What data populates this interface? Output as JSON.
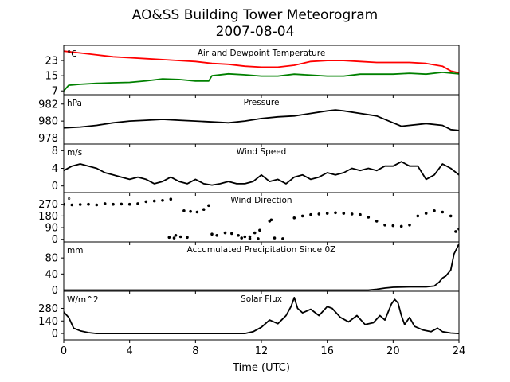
{
  "chart_data": {
    "type": "line",
    "title": "AO&SS Building Tower Meteorogram",
    "subtitle": "2007-08-04",
    "xlabel": "Time (UTC)",
    "xlim": [
      0,
      24
    ],
    "xticks": [
      0,
      4,
      8,
      12,
      16,
      20,
      24
    ],
    "panels": [
      {
        "title": "Air and Dewpoint Temperature",
        "unit": "°C",
        "ylim": [
          5,
          31
        ],
        "yticks": [
          7,
          15,
          23
        ],
        "series": [
          {
            "color": "#ff0000",
            "style": "line",
            "x": [
              0,
              1,
              2,
              3,
              4,
              5,
              6,
              7,
              8,
              9,
              10,
              11,
              12,
              13,
              14,
              15,
              16,
              17,
              18,
              19,
              20,
              21,
              22,
              23,
              23.5,
              24
            ],
            "y": [
              28,
              27,
              26,
              25,
              24.5,
              24,
              23.5,
              23,
              22.5,
              21.5,
              21,
              20,
              19.5,
              19.5,
              20.5,
              22.5,
              23,
              23,
              22.5,
              22,
              22,
              22,
              21.5,
              20,
              17.5,
              16.5
            ]
          },
          {
            "color": "#008000",
            "style": "line",
            "x": [
              0,
              0.3,
              1,
              2,
              3,
              4,
              5,
              6,
              7,
              8,
              8.8,
              9,
              10,
              11,
              12,
              13,
              14,
              15,
              16,
              17,
              18,
              19,
              20,
              21,
              22,
              23,
              24
            ],
            "y": [
              7,
              10,
              10.5,
              11,
              11.3,
              11.5,
              12.3,
              13.3,
              13,
              12.2,
              12.2,
              15,
              16,
              15.5,
              14.8,
              14.8,
              15.8,
              15.3,
              14.8,
              14.8,
              15.8,
              15.8,
              15.8,
              16.3,
              15.8,
              16.8,
              16
            ]
          }
        ]
      },
      {
        "title": "Pressure",
        "unit": "hPa",
        "ylim": [
          977.3,
          983.1
        ],
        "yticks": [
          978,
          980,
          982
        ],
        "series": [
          {
            "color": "#000000",
            "style": "line",
            "x": [
              0,
              1,
              2,
              3,
              4,
              5,
              6,
              7,
              8,
              9,
              10,
              11,
              12,
              13,
              14,
              15,
              16,
              16.5,
              17,
              18,
              19,
              20,
              20.5,
              21,
              22,
              23,
              23.5,
              24
            ],
            "y": [
              979.2,
              979.3,
              979.5,
              979.8,
              980,
              980.1,
              980.2,
              980.1,
              980,
              979.9,
              979.8,
              980,
              980.3,
              980.5,
              980.6,
              980.9,
              981.2,
              981.3,
              981.2,
              980.9,
              980.6,
              979.8,
              979.4,
              979.5,
              979.7,
              979.5,
              979.0,
              978.9
            ]
          }
        ]
      },
      {
        "title": "Wind Speed",
        "unit": "m/s",
        "ylim": [
          -1.5,
          9.5
        ],
        "yticks": [
          0,
          4,
          8
        ],
        "series": [
          {
            "color": "#000000",
            "style": "line",
            "x": [
              0,
              0.5,
              1,
              1.5,
              2,
              2.5,
              3,
              3.5,
              4,
              4.5,
              5,
              5.5,
              6,
              6.5,
              7,
              7.5,
              8,
              8.5,
              9,
              9.5,
              10,
              10.5,
              11,
              11.5,
              12,
              12.5,
              13,
              13.5,
              14,
              14.5,
              15,
              15.5,
              16,
              16.5,
              17,
              17.5,
              18,
              18.5,
              19,
              19.5,
              20,
              20.5,
              21,
              21.5,
              22,
              22.5,
              23,
              23.5,
              24
            ],
            "y": [
              3.5,
              4.5,
              5,
              4.5,
              4,
              3,
              2.5,
              2,
              1.5,
              2,
              1.5,
              0.5,
              1,
              2,
              1,
              0.5,
              1.5,
              0.5,
              0.2,
              0.5,
              1,
              0.5,
              0.5,
              1,
              2.5,
              1,
              1.5,
              0.5,
              2,
              2.5,
              1.5,
              2,
              3,
              2.5,
              3,
              4,
              3.5,
              4,
              3.5,
              4.5,
              4.5,
              5.5,
              4.5,
              4.5,
              1.5,
              2.5,
              5,
              4,
              2.5
            ]
          }
        ]
      },
      {
        "title": "Wind Direction",
        "unit": "°",
        "ylim": [
          -20,
          360
        ],
        "yticks": [
          0,
          90,
          180,
          270
        ],
        "series": [
          {
            "color": "#000000",
            "style": "points",
            "x": [
              0,
              0.5,
              1,
              1.5,
              2,
              2.5,
              3,
              3.5,
              4,
              4.5,
              5,
              5.5,
              6,
              6.5,
              7.3,
              7.7,
              8.1,
              8.5,
              8.8,
              6.8,
              7.1,
              7.5,
              6.7,
              6.4,
              9.0,
              9.3,
              9.8,
              10.2,
              10.6,
              11,
              11.3,
              11.6,
              11.9,
              10.8,
              11.3,
              11.8,
              12.8,
              13.3,
              12.5,
              12.6,
              14,
              14.5,
              15,
              15.5,
              16,
              16.5,
              17,
              17.5,
              18,
              18.5,
              19,
              19.5,
              20,
              20.5,
              21,
              21.5,
              22,
              22.5,
              23,
              23.5,
              23.8,
              24
            ],
            "y": [
              270,
              265,
              268,
              270,
              265,
              275,
              270,
              272,
              270,
              275,
              290,
              295,
              300,
              310,
              220,
              215,
              210,
              230,
              260,
              30,
              20,
              15,
              10,
              15,
              40,
              30,
              50,
              45,
              30,
              20,
              20,
              50,
              70,
              10,
              5,
              5,
              10,
              5,
              140,
              150,
              165,
              180,
              190,
              195,
              200,
              205,
              200,
              195,
              190,
              170,
              140,
              110,
              105,
              100,
              110,
              180,
              200,
              220,
              210,
              180,
              60,
              80
            ]
          }
        ]
      },
      {
        "title": "Accumulated Precipitation Since 0Z",
        "unit": "mm",
        "ylim": [
          -3,
          120
        ],
        "yticks": [
          0,
          40,
          80
        ],
        "series": [
          {
            "color": "#000000",
            "style": "line",
            "x": [
              0,
              18.5,
              19,
              19.5,
              20,
              21,
              22,
              22.5,
              22.8,
              23,
              23.2,
              23.5,
              23.7,
              24
            ],
            "y": [
              0,
              0,
              2,
              5,
              7,
              8,
              8,
              10,
              20,
              30,
              35,
              50,
              90,
              115
            ]
          }
        ]
      },
      {
        "title": "Solar Flux",
        "unit": "W/m^2",
        "ylim": [
          -70,
          470
        ],
        "yticks": [
          0,
          140,
          280
        ],
        "series": [
          {
            "color": "#000000",
            "style": "line",
            "x": [
              0,
              0.3,
              0.6,
              1,
              1.5,
              2,
              3,
              4,
              5,
              6,
              7,
              8,
              9,
              10,
              11,
              11.5,
              12,
              12.5,
              13,
              13.5,
              13.8,
              14,
              14.2,
              14.5,
              15,
              15.5,
              16,
              16.3,
              16.8,
              17.3,
              17.8,
              18.3,
              18.8,
              19.2,
              19.5,
              19.9,
              20.1,
              20.3,
              20.5,
              20.7,
              21,
              21.3,
              21.8,
              22.3,
              22.7,
              23,
              23.5,
              24
            ],
            "y": [
              240,
              180,
              60,
              30,
              10,
              0,
              0,
              0,
              0,
              0,
              0,
              0,
              0,
              0,
              0,
              20,
              70,
              150,
              110,
              200,
              300,
              400,
              280,
              230,
              270,
              200,
              300,
              280,
              180,
              130,
              200,
              100,
              120,
              200,
              150,
              330,
              380,
              340,
              200,
              100,
              180,
              80,
              40,
              20,
              60,
              20,
              5,
              0
            ]
          }
        ]
      }
    ]
  }
}
